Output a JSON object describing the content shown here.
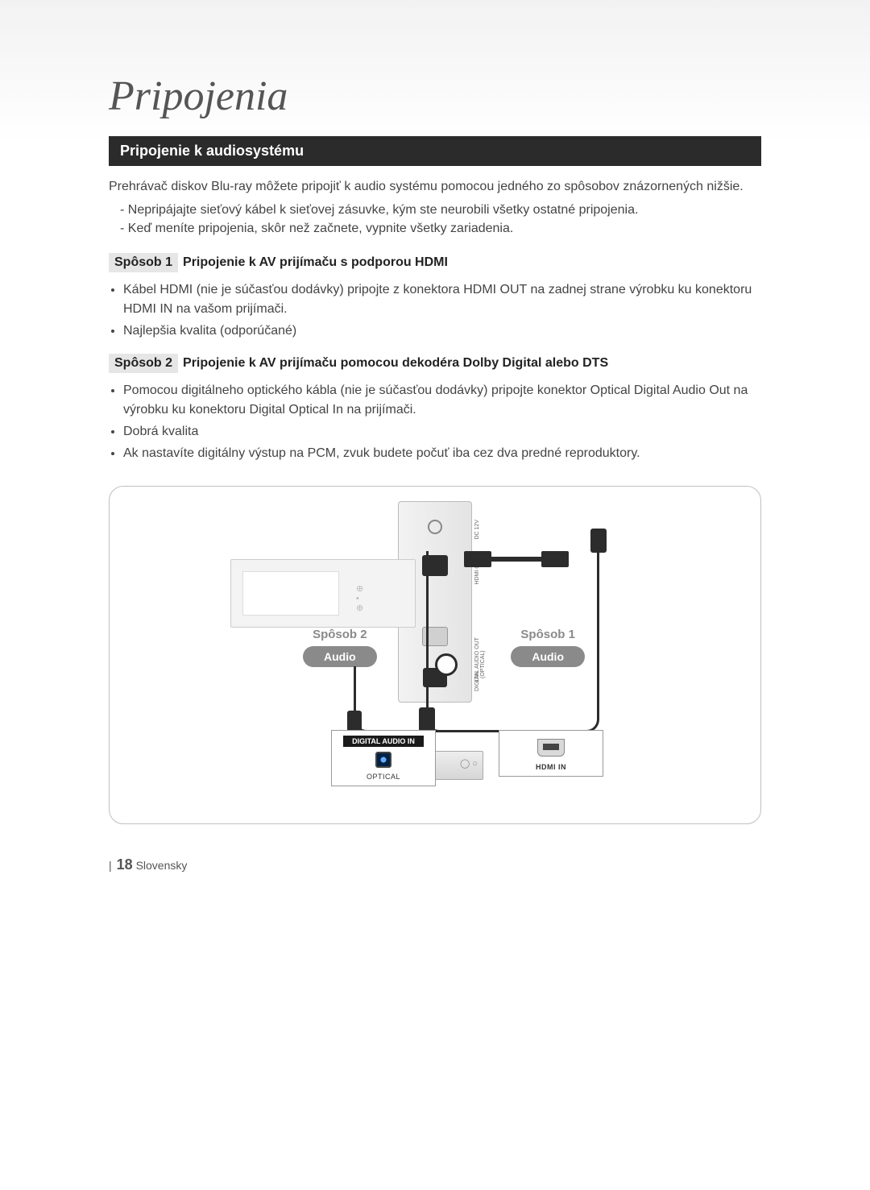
{
  "chapter_title": "Pripojenia",
  "section_title": "Pripojenie k audiosystému",
  "intro_text": "Prehrávač diskov Blu-ray môžete pripojiť k audio systému pomocou jedného zo spôsobov znázornených nižšie.",
  "warnings": [
    "Nepripájajte sieťový kábel k sieťovej zásuvke, kým ste neurobili všetky ostatné pripojenia.",
    "Keď meníte pripojenia, skôr než začnete, vypnite všetky zariadenia."
  ],
  "method1": {
    "tag": "Spôsob 1",
    "title": "Pripojenie k AV prijímaču s podporou HDMI",
    "bullets": [
      "Kábel HDMI (nie je súčasťou dodávky) pripojte z konektora HDMI OUT na zadnej strane výrobku ku konektoru HDMI IN na vašom prijímači.",
      "Najlepšia kvalita (odporúčané)"
    ]
  },
  "method2": {
    "tag": "Spôsob 2",
    "title": "Pripojenie k AV prijímaču pomocou dekodéra Dolby Digital alebo DTS",
    "bullets": [
      "Pomocou digitálneho optického kábla (nie je súčasťou dodávky) pripojte konektor Optical Digital Audio Out na výrobku ku konektoru Digital Optical In na prijímači.",
      "Dobrá kvalita",
      "Ak nastavíte digitálny výstup na PCM, zvuk budete počuť iba cez dva predné reproduktory."
    ]
  },
  "diagram": {
    "method2_label": "Spôsob 2",
    "method1_label": "Spôsob 1",
    "audio_label": "Audio",
    "digital_audio_in": "DIGITAL AUDIO IN",
    "optical": "OPTICAL",
    "hdmi_in": "HDMI IN",
    "side_labels": {
      "dc": "DC 12V",
      "hdmi": "HDMI OUT",
      "audio": "DIGITAL AUDIO OUT (OPTICAL)",
      "lan": "LAN"
    }
  },
  "footer": {
    "page_number": "18",
    "language": "Slovensky"
  },
  "colors": {
    "section_bar_bg": "#2b2b2b",
    "accent_gray": "#8a8a8a",
    "cable_black": "#2c2c2c",
    "tag_bg": "#e6e6e6",
    "border_gray": "#c0c0c0"
  }
}
